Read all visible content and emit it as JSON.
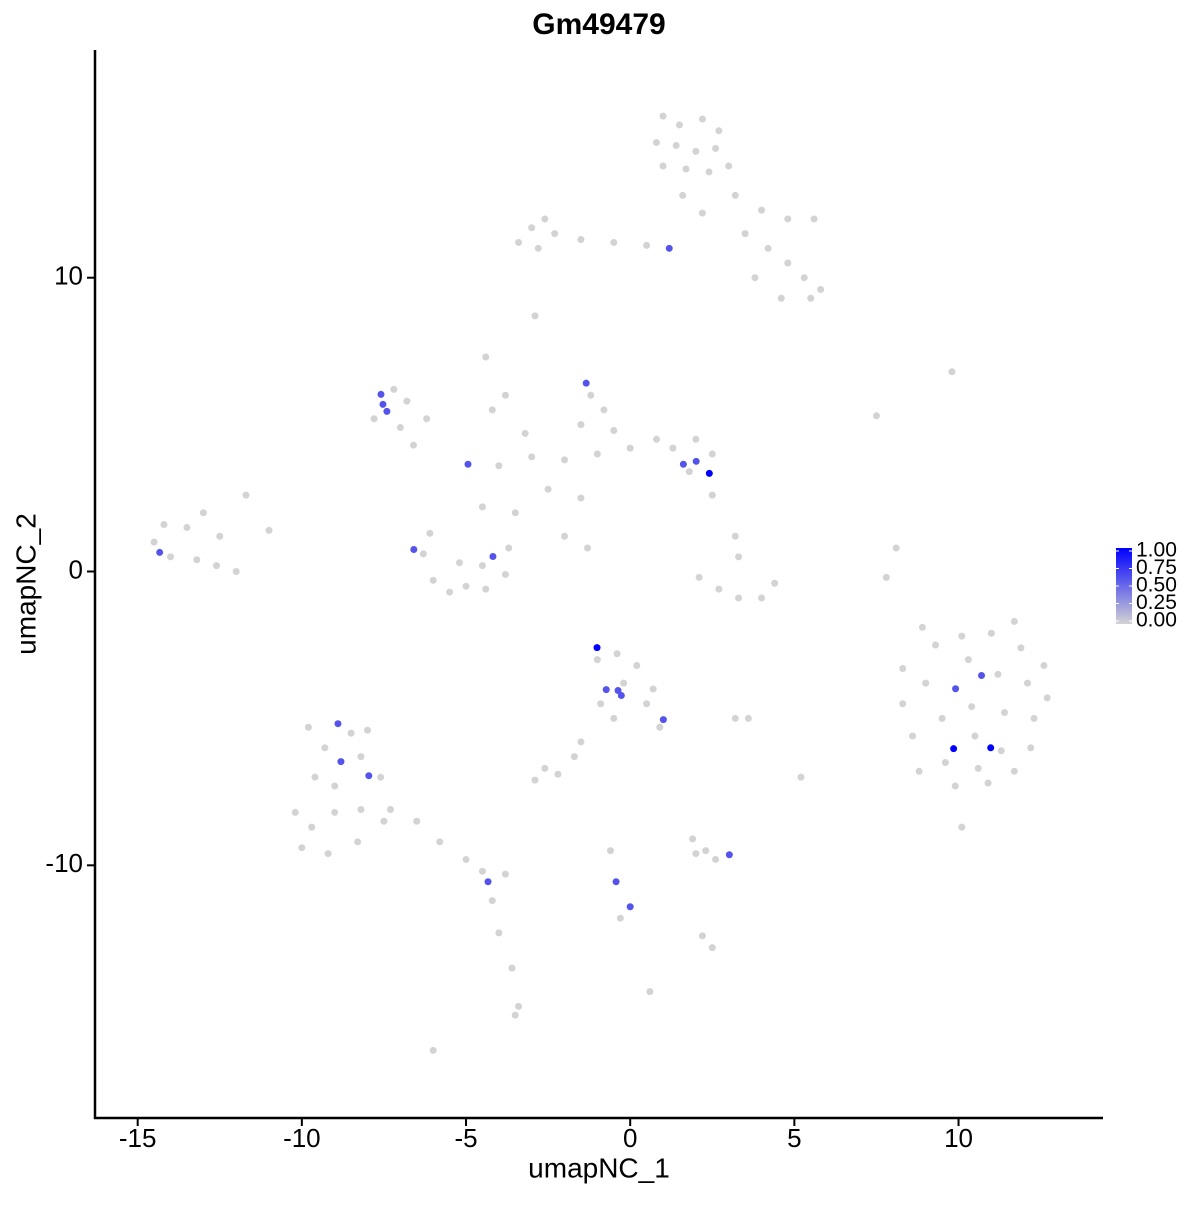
{
  "chart_data": {
    "type": "scatter",
    "title": "Gm49479",
    "x_label": "umapNC_1",
    "y_label": "umapNC_2",
    "x": [
      1,
      1.5,
      2.2,
      2.7,
      0.8,
      1.4,
      2,
      2.6,
      1,
      1.7,
      2.4,
      3,
      1.6,
      2.2,
      3.2,
      4,
      4.8,
      5.6,
      3.5,
      4.2,
      4.8,
      5.3,
      5.8,
      5.5,
      4.6,
      3.8,
      0.5,
      -0.5,
      -1.5,
      -2.3,
      -3,
      -2.6,
      -2.8,
      -3.4,
      -2.9,
      -4.4,
      -3.8,
      -14.5,
      -14,
      -13.5,
      -13,
      -12.5,
      -13.2,
      -12.6,
      -14.2,
      -12,
      -11.7,
      -11,
      -7.2,
      -6.8,
      -7.8,
      -7,
      -6.2,
      -6.6,
      -1.2,
      -0.8,
      -1.5,
      -0.5,
      0,
      0.8,
      1.3,
      2,
      2.5,
      1.8,
      -1,
      -2,
      -3,
      -4,
      -2.5,
      -1.5,
      -3.5,
      -4.5,
      -2,
      -1.3,
      -3.2,
      -4.2,
      -6.3,
      -6,
      -5.5,
      -5,
      -4.4,
      -3.8,
      -3.7,
      -4.5,
      -5.2,
      -6.1,
      2.1,
      2.7,
      3.3,
      4,
      4.4,
      3.2,
      3.3,
      2.5,
      7.8,
      8.1,
      8.3,
      8.6,
      8.8,
      9,
      9.3,
      9.5,
      9.6,
      9.9,
      10.1,
      10.3,
      10.4,
      10.5,
      10.6,
      10.9,
      11,
      11.2,
      11.4,
      11.3,
      11.7,
      11.9,
      12.1,
      12.3,
      12.2,
      12.6,
      12.7,
      8.9,
      11.7,
      8.3,
      10.1,
      5.2,
      7.5,
      9.8,
      3.2,
      3.6,
      -1,
      -0.4,
      0.2,
      -0.9,
      -0.2,
      0.5,
      -0.5,
      -1.5,
      -1.7,
      0.7,
      0.9,
      -9.8,
      -9.3,
      -8.5,
      -8,
      -9.6,
      -9,
      -8.2,
      -7.6,
      -10.2,
      -9.7,
      -9,
      -8.2,
      -7.5,
      -10,
      -9.2,
      -8.3,
      -7.3,
      -6.5,
      -5.8,
      -5,
      -4.5,
      -3.8,
      -4.2,
      -4,
      -3.6,
      -3.4,
      -3.5,
      -6,
      -2.6,
      -2.2,
      -2.9,
      2,
      2.6,
      2.3,
      1.9,
      -0.6,
      -0.3,
      2.2,
      2.5,
      0.6,
      1.19,
      -7.59,
      -7.53,
      -7.41,
      -1.34,
      -4.94,
      1.62,
      2.01,
      2.41,
      -14.33,
      -6.59,
      -4.18,
      -1.01,
      -0.73,
      -0.37,
      -0.27,
      1.01,
      9.91,
      10.7,
      9.85,
      10.98,
      -8.9,
      -8.81,
      -7.96,
      -4.33,
      3.02,
      -0.43,
      0
    ],
    "y": [
      15.5,
      15.2,
      15.4,
      15,
      14.6,
      14.5,
      14.3,
      14.4,
      13.8,
      13.7,
      13.6,
      13.8,
      12.8,
      12.2,
      12.8,
      12.3,
      12,
      12,
      11.5,
      11,
      10.5,
      10,
      9.6,
      9.3,
      9.3,
      10,
      11.1,
      11.2,
      11.3,
      11.5,
      11.7,
      12,
      11,
      11.2,
      8.7,
      7.3,
      6,
      1,
      0.5,
      1.5,
      2,
      1.2,
      0.4,
      0.2,
      1.6,
      0,
      2.6,
      1.4,
      6.2,
      5.8,
      5.2,
      4.9,
      5.2,
      4.3,
      6,
      5.5,
      5,
      4.8,
      4.2,
      4.5,
      4.2,
      4.5,
      4,
      3.4,
      4,
      3.8,
      3.9,
      3.6,
      2.8,
      2.5,
      2,
      2.2,
      1.2,
      0.8,
      4.7,
      5.5,
      0.6,
      -0.3,
      -0.7,
      -0.5,
      -0.6,
      -0.1,
      0.8,
      0.2,
      0.3,
      1.3,
      -0.2,
      -0.6,
      -0.9,
      -0.9,
      -0.4,
      1.2,
      0.5,
      2.6,
      -0.2,
      0.8,
      -4.5,
      -5.6,
      -6.8,
      -3.8,
      -2.5,
      -5,
      -6.5,
      -7.3,
      -2.2,
      -3,
      -4.6,
      -5.6,
      -6.7,
      -7.2,
      -2.1,
      -3.5,
      -4.8,
      -6.1,
      -6.8,
      -2.6,
      -3.8,
      -5,
      -6,
      -3.2,
      -4.3,
      -1.9,
      -1.7,
      -3.3,
      -8.7,
      -7,
      5.3,
      6.8,
      -5,
      -5,
      -3,
      -2.8,
      -3.2,
      -4.5,
      -3.8,
      -4.5,
      -5,
      -5.8,
      -6.3,
      -4,
      -5.3,
      -5.3,
      -6,
      -5.5,
      -5.4,
      -7,
      -7.3,
      -6.3,
      -7,
      -8.2,
      -8.7,
      -8.2,
      -8.1,
      -8.5,
      -9.4,
      -9.6,
      -9.2,
      -8.1,
      -8.5,
      -9.2,
      -9.8,
      -10.2,
      -10.3,
      -11.2,
      -12.3,
      -13.5,
      -14.8,
      -15.1,
      -16.3,
      -6.7,
      -6.9,
      -7.1,
      -9.6,
      -9.8,
      -9.5,
      -9.1,
      -9.5,
      -11.8,
      -12.4,
      -12.8,
      -14.3,
      11,
      6.03,
      5.69,
      5.45,
      6.41,
      3.65,
      3.65,
      3.75,
      3.34,
      0.65,
      0.75,
      0.51,
      -2.59,
      -4.02,
      -4.05,
      -4.22,
      -5.04,
      -3.99,
      -3.54,
      -6.03,
      -6,
      -5.18,
      -6.47,
      -6.95,
      -10.56,
      -9.64,
      -10.56,
      -11.41
    ],
    "values": [
      0,
      0,
      0,
      0,
      0,
      0,
      0,
      0,
      0,
      0,
      0,
      0,
      0,
      0,
      0,
      0,
      0,
      0,
      0,
      0,
      0,
      0,
      0,
      0,
      0,
      0,
      0,
      0,
      0,
      0,
      0,
      0,
      0,
      0,
      0,
      0,
      0,
      0,
      0,
      0,
      0,
      0,
      0,
      0,
      0,
      0,
      0,
      0,
      0,
      0,
      0,
      0,
      0,
      0,
      0,
      0,
      0,
      0,
      0,
      0,
      0,
      0,
      0,
      0,
      0,
      0,
      0,
      0,
      0,
      0,
      0,
      0,
      0,
      0,
      0,
      0,
      0,
      0,
      0,
      0,
      0,
      0,
      0,
      0,
      0,
      0,
      0,
      0,
      0,
      0,
      0,
      0,
      0,
      0,
      0,
      0,
      0,
      0,
      0,
      0,
      0,
      0,
      0,
      0,
      0,
      0,
      0,
      0,
      0,
      0,
      0,
      0,
      0,
      0,
      0,
      0,
      0,
      0,
      0,
      0,
      0,
      0,
      0,
      0,
      0,
      0,
      0,
      0,
      0,
      0,
      0,
      0,
      0,
      0,
      0,
      0,
      0,
      0,
      0,
      0,
      0,
      0,
      0,
      0,
      0,
      0,
      0,
      0,
      0,
      0,
      0,
      0,
      0,
      0,
      0,
      0,
      0,
      0,
      0,
      0,
      0,
      0,
      0,
      0,
      0,
      0,
      0,
      0,
      0,
      0,
      0,
      0,
      0,
      0,
      0,
      0,
      0,
      0,
      0,
      0,
      0,
      0.6,
      0.6,
      0.6,
      0.6,
      0.6,
      0.6,
      0.6,
      0.6,
      1,
      0.6,
      0.6,
      0.6,
      1,
      0.6,
      0.6,
      0.6,
      0.6,
      0.6,
      0.6,
      1,
      1,
      0.6,
      0.6,
      0.6,
      0.6,
      0.6,
      0.6,
      0.6
    ],
    "xlim": [
      -16.3,
      14.4
    ],
    "ylim": [
      -18.6,
      17.75
    ],
    "xticks": [
      -15,
      -10,
      -5,
      0,
      5,
      10
    ],
    "yticks": [
      -10,
      0,
      10
    ],
    "color_low": "#d3d3d3",
    "color_high": "#0000ff",
    "colorbar_lim": [
      0,
      1
    ],
    "colorbar_ticks": [
      {
        "value": 0,
        "label": "0.00"
      },
      {
        "value": 0.25,
        "label": "0.25"
      },
      {
        "value": 0.5,
        "label": "0.50"
      },
      {
        "value": 0.75,
        "label": "0.75"
      },
      {
        "value": 1,
        "label": "1.00"
      }
    ]
  }
}
